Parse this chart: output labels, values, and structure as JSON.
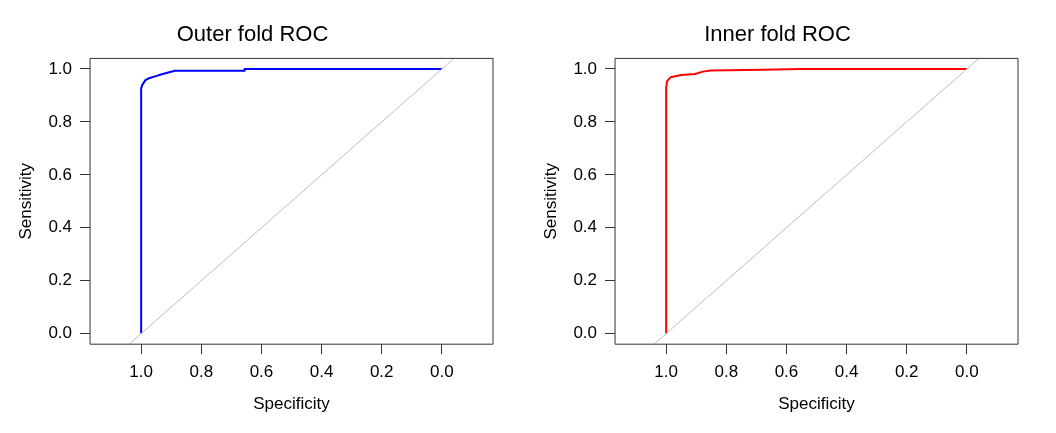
{
  "chart_data": [
    {
      "type": "line",
      "title": "Outer fold ROC",
      "xlabel": "Specificity",
      "ylabel": "Sensitivity",
      "xlim": [
        1.17,
        -0.17
      ],
      "ylim": [
        -0.04,
        1.04
      ],
      "xticks": [
        {
          "value": 1,
          "label": "1.0"
        },
        {
          "value": 0.8,
          "label": "0.8"
        },
        {
          "value": 0.6,
          "label": "0.6"
        },
        {
          "value": 0.4,
          "label": "0.4"
        },
        {
          "value": 0.2,
          "label": "0.2"
        },
        {
          "value": 0,
          "label": "0.0"
        }
      ],
      "yticks": [
        {
          "value": 0,
          "label": "0.0"
        },
        {
          "value": 0.2,
          "label": "0.2"
        },
        {
          "value": 0.4,
          "label": "0.4"
        },
        {
          "value": 0.6,
          "label": "0.6"
        },
        {
          "value": 0.8,
          "label": "0.8"
        },
        {
          "value": 1,
          "label": "1.0"
        }
      ],
      "grid": false,
      "legend": false,
      "series": [
        {
          "color": "#bebebe",
          "x": [
            1.04,
            -0.04
          ],
          "values": [
            -0.04,
            1.04
          ]
        },
        {
          "color": "#0000ff",
          "x": [
            1,
            1,
            0.997,
            0.986,
            0.974,
            0.951,
            0.934,
            0.913,
            0.888,
            0.656,
            0.656,
            0
          ],
          "values": [
            0,
            0.926,
            0.938,
            0.958,
            0.965,
            0.973,
            0.979,
            0.986,
            0.993,
            0.993,
            1,
            1
          ]
        }
      ]
    },
    {
      "type": "line",
      "title": "Inner fold ROC",
      "xlabel": "Specificity",
      "ylabel": "Sensitivity",
      "xlim": [
        1.17,
        -0.17
      ],
      "ylim": [
        -0.04,
        1.04
      ],
      "xticks": [
        {
          "value": 1,
          "label": "1.0"
        },
        {
          "value": 0.8,
          "label": "0.8"
        },
        {
          "value": 0.6,
          "label": "0.6"
        },
        {
          "value": 0.4,
          "label": "0.4"
        },
        {
          "value": 0.2,
          "label": "0.2"
        },
        {
          "value": 0,
          "label": "0.0"
        }
      ],
      "yticks": [
        {
          "value": 0,
          "label": "0.0"
        },
        {
          "value": 0.2,
          "label": "0.2"
        },
        {
          "value": 0.4,
          "label": "0.4"
        },
        {
          "value": 0.6,
          "label": "0.6"
        },
        {
          "value": 0.8,
          "label": "0.8"
        },
        {
          "value": 1,
          "label": "1.0"
        }
      ],
      "grid": false,
      "legend": false,
      "series": [
        {
          "color": "#bebebe",
          "x": [
            1.04,
            -0.04
          ],
          "values": [
            -0.04,
            1.04
          ]
        },
        {
          "color": "#ff0000",
          "x": [
            1,
            1,
            0.997,
            0.985,
            0.95,
            0.904,
            0.878,
            0.852,
            0.68,
            0.553,
            0
          ],
          "values": [
            0,
            0.929,
            0.954,
            0.969,
            0.977,
            0.981,
            0.99,
            0.994,
            0.997,
            1,
            1
          ]
        }
      ]
    }
  ]
}
